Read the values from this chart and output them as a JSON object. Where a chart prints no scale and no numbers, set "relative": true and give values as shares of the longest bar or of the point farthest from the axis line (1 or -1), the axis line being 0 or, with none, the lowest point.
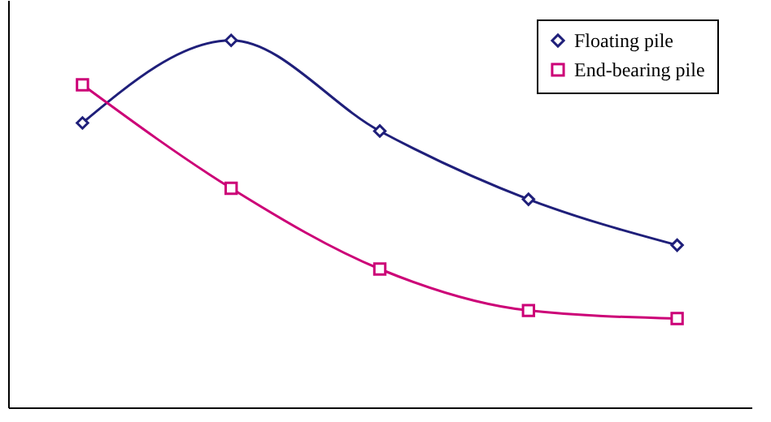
{
  "chart_data": {
    "type": "line",
    "relative": true,
    "categories": [
      null,
      null,
      null,
      null,
      null
    ],
    "series": [
      {
        "name": "Floating pile",
        "color": "#1f1f7a",
        "marker": "diamond",
        "values": [
          0.775,
          1,
          0.753,
          0.567,
          0.442
        ]
      },
      {
        "name": "End-bearing pile",
        "color": "#cc0077",
        "marker": "square",
        "values": [
          0.879,
          0.597,
          0.377,
          0.264,
          0.242
        ]
      }
    ],
    "legend": "top right",
    "grid": false
  }
}
